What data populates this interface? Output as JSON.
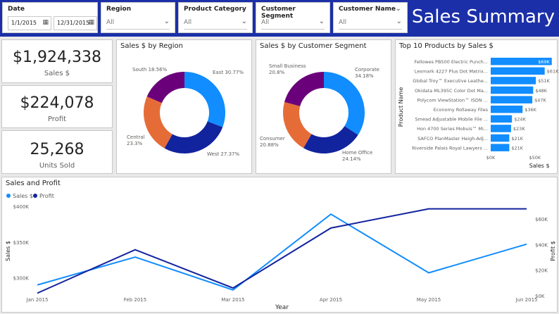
{
  "filters": {
    "date": {
      "title": "Date",
      "start": "1/1/2015",
      "end": "12/31/2015"
    },
    "region": {
      "title": "Region",
      "value": "All"
    },
    "product_category": {
      "title": "Product Category",
      "value": "All"
    },
    "customer_segment": {
      "title": "Customer Segment",
      "value": "All"
    },
    "customer_name": {
      "title": "Customer Name",
      "value": "All"
    }
  },
  "page_title": "Sales Summary",
  "kpis": {
    "sales": {
      "value": "$1,924,338",
      "label": "Sales $"
    },
    "profit": {
      "value": "$224,078",
      "label": "Profit"
    },
    "units": {
      "value": "25,268",
      "label": "Units Sold"
    }
  },
  "colors": {
    "blue": "#118dff",
    "navy": "#12239e",
    "orange": "#e66c37",
    "purple": "#6b007b",
    "bar": "#118dff",
    "header": "#1b2fa8"
  },
  "chart_data": [
    {
      "type": "pie",
      "title": "Sales $ by Region",
      "slices": [
        {
          "label": "East",
          "percent": 30.77,
          "display": "East 30.77%",
          "color": "#118dff"
        },
        {
          "label": "West",
          "percent": 27.37,
          "display": "West 27.37%",
          "color": "#12239e"
        },
        {
          "label": "Central",
          "percent": 23.3,
          "display": "Central\n23.3%",
          "color": "#e66c37"
        },
        {
          "label": "South",
          "percent": 18.56,
          "display": "South 18.56%",
          "color": "#6b007b"
        }
      ]
    },
    {
      "type": "pie",
      "title": "Sales $ by Customer Segment",
      "slices": [
        {
          "label": "Corporate",
          "percent": 34.18,
          "display": "Corporate\n34.18%",
          "color": "#118dff"
        },
        {
          "label": "Home Office",
          "percent": 24.14,
          "display": "Home Office\n24.14%",
          "color": "#12239e"
        },
        {
          "label": "Consumer",
          "percent": 20.88,
          "display": "Consumer\n20.88%",
          "color": "#e66c37"
        },
        {
          "label": "Small Business",
          "percent": 20.8,
          "display": "Small Business\n20.8%",
          "color": "#6b007b"
        }
      ]
    },
    {
      "type": "bar",
      "orientation": "horizontal",
      "title": "Top 10 Products by Sales $",
      "ylabel": "Product Name",
      "xlabel": "Sales $",
      "x_ticks": [
        "$0K",
        "$50K"
      ],
      "xlim": [
        0,
        70
      ],
      "categories": [
        "Fellowes PB500 Electric Punch...",
        "Lexmark 4227 Plus Dot Matrix...",
        "Global Troy™ Executive Leathe...",
        "Okidata ML395C Color Dot Ma...",
        "Polycom ViewStation™ ISDN ...",
        "Economy Rollaway Files",
        "Smead Adjustable Mobile File ...",
        "Hon 4700 Series Mobuis™ Mi...",
        "SAFCO PlanMaster Heigh-Adj...",
        "Riverside Palais Royal Lawyers ..."
      ],
      "values": [
        69,
        61,
        51,
        48,
        47,
        36,
        24,
        23,
        21,
        21
      ],
      "value_labels": [
        "$69K",
        "$61K",
        "$51K",
        "$48K",
        "$47K",
        "$36K",
        "$24K",
        "$23K",
        "$21K",
        "$21K"
      ]
    },
    {
      "type": "line",
      "title": "Sales and Profit",
      "xlabel": "Year",
      "ylabel": "Sales $",
      "y2label": "Profit $",
      "categories": [
        "Jan 2015",
        "Feb 2015",
        "Mar 2015",
        "Apr 2015",
        "May 2015",
        "Jun 2015"
      ],
      "ylim": [
        275,
        400
      ],
      "y_ticks": [
        300,
        350,
        400
      ],
      "y_tick_labels": [
        "$300K",
        "$350K",
        "$400K"
      ],
      "y2lim": [
        0,
        70
      ],
      "y2_ticks": [
        0,
        20,
        40,
        60
      ],
      "y2_tick_labels": [
        "$0K",
        "$20K",
        "$40K",
        "$60K"
      ],
      "series": [
        {
          "name": "Sales $",
          "axis": "left",
          "color": "#118dff",
          "values": [
            290,
            329,
            283,
            389,
            307,
            347
          ]
        },
        {
          "name": "Profit",
          "axis": "right",
          "color": "#12239e",
          "values": [
            2,
            36,
            6,
            53,
            68,
            68
          ]
        }
      ]
    }
  ]
}
